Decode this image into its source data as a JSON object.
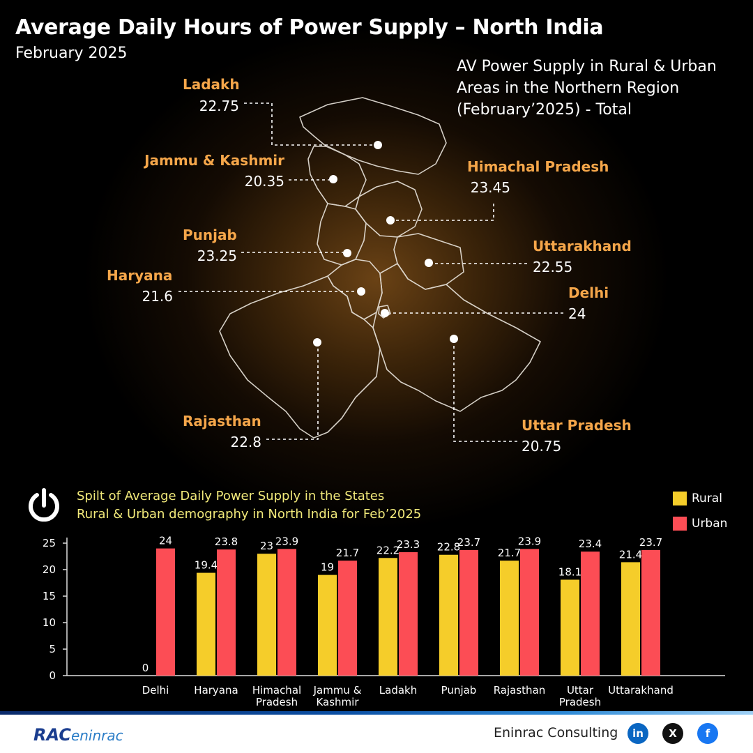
{
  "title": "Average Daily Hours of Power Supply – North India",
  "subtitle": "February 2025",
  "map": {
    "title_lines": [
      "AV Power Supply in Rural & Urban",
      "Areas in the Northern Region",
      "(February’2025) - Total"
    ],
    "states": [
      {
        "name": "Ladakh",
        "value": "22.75"
      },
      {
        "name": "Jammu & Kashmir",
        "value": "20.35"
      },
      {
        "name": "Himachal Pradesh",
        "value": "23.45"
      },
      {
        "name": "Punjab",
        "value": "23.25"
      },
      {
        "name": "Uttarakhand",
        "value": "22.55"
      },
      {
        "name": "Haryana",
        "value": "21.6"
      },
      {
        "name": "Delhi",
        "value": "24"
      },
      {
        "name": "Rajasthan",
        "value": "22.8"
      },
      {
        "name": "Uttar Pradesh",
        "value": "20.75"
      }
    ]
  },
  "chart_title_lines": [
    "Spilt of Average Daily Power Supply in the States",
    "Rural & Urban demography in North India for Feb’2025"
  ],
  "icons": {
    "chart_icon": "power-icon"
  },
  "legend": [
    {
      "label": "Rural",
      "color": "#f5cd2a"
    },
    {
      "label": "Urban",
      "color": "#fc4d55"
    }
  ],
  "chart_data": {
    "type": "bar",
    "title": "Spilt of Average Daily Power Supply in the States Rural & Urban demography in North India for Feb’2025",
    "xlabel": "",
    "ylabel": "",
    "ylim": [
      0,
      25
    ],
    "yticks": [
      0,
      5,
      10,
      15,
      20,
      25
    ],
    "categories": [
      [
        "Delhi"
      ],
      [
        "Haryana"
      ],
      [
        "Himachal",
        "Pradesh"
      ],
      [
        "Jammu &",
        "Kashmir"
      ],
      [
        "Ladakh"
      ],
      [
        "Punjab"
      ],
      [
        "Rajasthan"
      ],
      [
        "Uttar",
        "Pradesh"
      ],
      [
        "Uttarakhand"
      ]
    ],
    "series": [
      {
        "name": "Rural",
        "color": "#f5cd2a",
        "values": [
          0,
          19.4,
          23,
          19,
          22.2,
          22.8,
          21.7,
          18.1,
          21.4
        ]
      },
      {
        "name": "Urban",
        "color": "#fc4d55",
        "values": [
          24,
          23.8,
          23.9,
          21.7,
          23.3,
          23.7,
          23.9,
          23.4,
          23.7
        ]
      }
    ],
    "legend_position": "top-right",
    "grid": false
  },
  "footer": {
    "logo_main": "RAC",
    "logo_sub": "eninrac",
    "brand": "Eninrac Consulting",
    "social": [
      {
        "icon": "linkedin-icon",
        "glyph": "in",
        "color": "#0a66c2"
      },
      {
        "icon": "x-icon",
        "glyph": "X",
        "color": "#111111"
      },
      {
        "icon": "facebook-icon",
        "glyph": "f",
        "color": "#1877f2"
      }
    ]
  }
}
